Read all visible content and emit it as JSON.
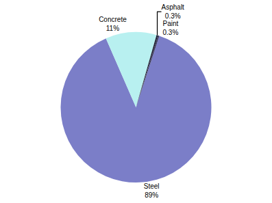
{
  "chart_data": {
    "type": "pie",
    "categories": [
      "Steel",
      "Concrete",
      "Asphalt",
      "Paint"
    ],
    "values": [
      89,
      11,
      0.3,
      0.3
    ],
    "value_labels": [
      "89%",
      "11%",
      "0.3%",
      "0.3%"
    ],
    "colors": [
      "#7b7ec8",
      "#b8f0f0",
      "#1a1a2e",
      "#3a3a5c"
    ],
    "data_labels": true
  }
}
